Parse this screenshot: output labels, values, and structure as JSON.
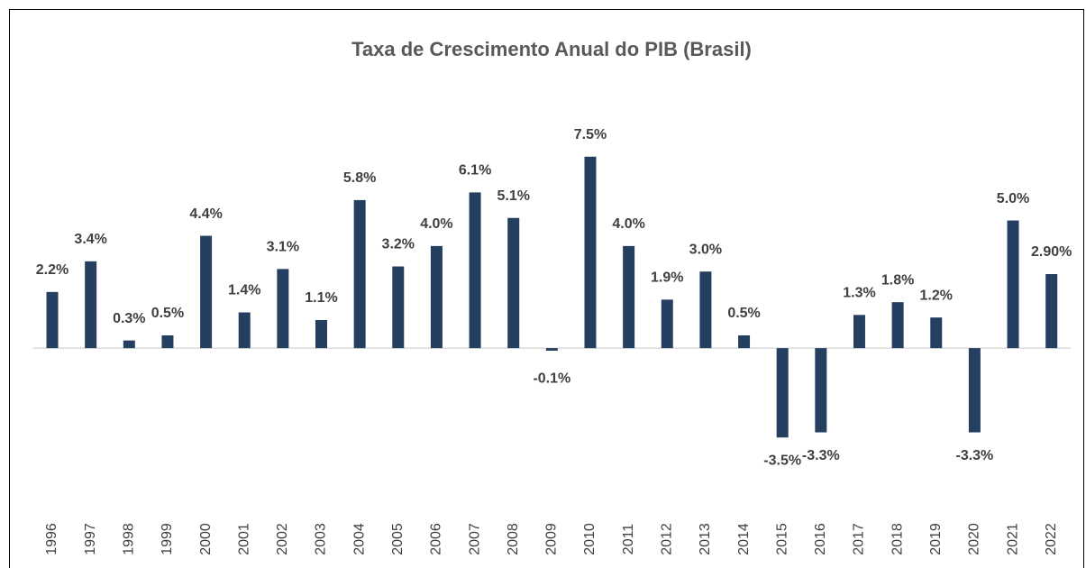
{
  "chart_data": {
    "type": "bar",
    "title": "Taxa de Crescimento Anual do PIB (Brasil)",
    "categories": [
      "1996",
      "1997",
      "1998",
      "1999",
      "2000",
      "2001",
      "2002",
      "2003",
      "2004",
      "2005",
      "2006",
      "2007",
      "2008",
      "2009",
      "2010",
      "2011",
      "2012",
      "2013",
      "2014",
      "2015",
      "2016",
      "2017",
      "2018",
      "2019",
      "2020",
      "2021",
      "2022"
    ],
    "values": [
      2.2,
      3.4,
      0.3,
      0.5,
      4.4,
      1.4,
      3.1,
      1.1,
      5.8,
      3.2,
      4.0,
      6.1,
      5.1,
      -0.1,
      7.5,
      4.0,
      1.9,
      3.0,
      0.5,
      -3.5,
      -3.3,
      1.3,
      1.8,
      1.2,
      -3.3,
      5.0,
      2.9
    ],
    "value_labels": [
      "2.2%",
      "3.4%",
      "0.3%",
      "0.5%",
      "4.4%",
      "1.4%",
      "3.1%",
      "1.1%",
      "5.8%",
      "3.2%",
      "4.0%",
      "6.1%",
      "5.1%",
      "-0.1%",
      "7.5%",
      "4.0%",
      "1.9%",
      "3.0%",
      "0.5%",
      "-3.5%",
      "-3.3%",
      "1.3%",
      "1.8%",
      "1.2%",
      "-3.3%",
      "5.0%",
      "2.90%"
    ],
    "color": "#253f60",
    "ylim": [
      -6,
      10
    ]
  }
}
